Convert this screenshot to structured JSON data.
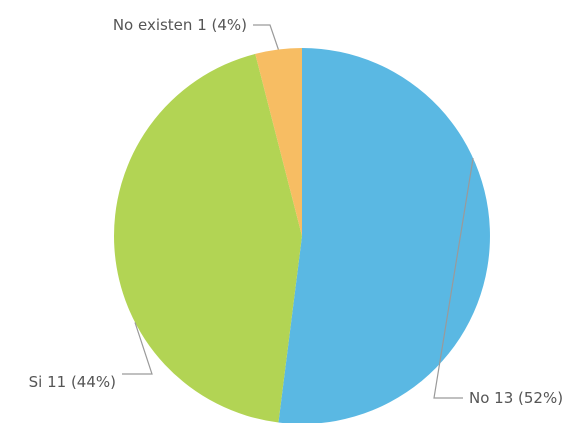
{
  "chart_data": {
    "type": "pie",
    "slices": [
      {
        "label": "No",
        "value": 13,
        "percent": "52%",
        "color": "#5ab8e3",
        "display": "No 13 (52%)"
      },
      {
        "label": "Si",
        "value": 11,
        "percent": "44%",
        "color": "#b2d454",
        "display": "Si 11 (44%)"
      },
      {
        "label": "No existen",
        "value": 1,
        "percent": "4%",
        "color": "#f7bd63",
        "display": "No existen 1 (4%)"
      }
    ],
    "start": "12 o'clock",
    "direction": "clockwise",
    "legend": "none",
    "labels": "outside with leader lines"
  }
}
